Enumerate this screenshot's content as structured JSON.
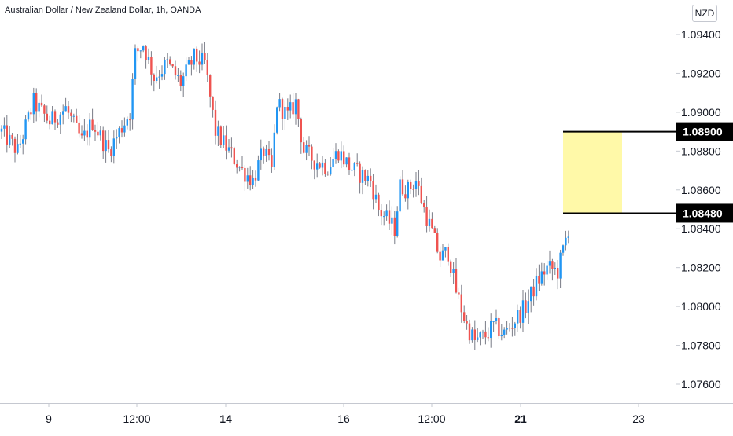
{
  "header": {
    "symbol": "Australian Dollar / New Zealand Dollar",
    "interval": "1h",
    "source": "OANDA",
    "title": "Australian Dollar / New Zealand Dollar, 1h, OANDA",
    "currency": "NZD"
  },
  "colors": {
    "up": "#2196f3",
    "down": "#ef5350",
    "wick": "#787b86",
    "zone_fill": "#fff9a8",
    "level_line": "#000000",
    "label_bg": "#000000",
    "label_text": "#ffffff",
    "axis_text": "#131722",
    "axis_line": "#c5c8d0"
  },
  "chart_data": {
    "type": "candlestick",
    "instrument": "AUD/NZD",
    "ylim": [
      1.075,
      1.0955
    ],
    "y_ticks": [
      "1.09400",
      "1.09200",
      "1.09000",
      "1.08800",
      "1.08600",
      "1.08400",
      "1.08200",
      "1.08000",
      "1.07800",
      "1.07600"
    ],
    "x_ticks": [
      {
        "label": "9",
        "bold": false
      },
      {
        "label": "12:00",
        "bold": false
      },
      {
        "label": "14",
        "bold": true
      },
      {
        "label": "16",
        "bold": false
      },
      {
        "label": "12:00",
        "bold": false
      },
      {
        "label": "21",
        "bold": true
      },
      {
        "label": "23",
        "bold": false
      }
    ],
    "price_path": [
      [
        0,
        1.089
      ],
      [
        6,
        1.088
      ],
      [
        12,
        1.0905
      ],
      [
        18,
        1.0895
      ],
      [
        24,
        1.0902
      ],
      [
        30,
        1.0885
      ],
      [
        34,
        1.0895
      ],
      [
        40,
        1.088
      ],
      [
        44,
        1.089
      ],
      [
        48,
        1.09
      ],
      [
        50,
        1.093
      ],
      [
        53,
        1.0935
      ],
      [
        57,
        1.0918
      ],
      [
        62,
        1.0925
      ],
      [
        67,
        1.0915
      ],
      [
        72,
        1.0928
      ],
      [
        76,
        1.0925
      ],
      [
        80,
        1.089
      ],
      [
        85,
        1.088
      ],
      [
        90,
        1.087
      ],
      [
        94,
        1.0865
      ],
      [
        98,
        1.088
      ],
      [
        101,
        1.087
      ],
      [
        103,
        1.0905
      ],
      [
        107,
        1.0898
      ],
      [
        110,
        1.0905
      ],
      [
        113,
        1.088
      ],
      [
        117,
        1.0875
      ],
      [
        122,
        1.0872
      ],
      [
        126,
        1.088
      ],
      [
        130,
        1.0872
      ],
      [
        134,
        1.0868
      ],
      [
        138,
        1.0865
      ],
      [
        141,
        1.085
      ],
      [
        144,
        1.0845
      ],
      [
        147,
        1.084
      ],
      [
        149,
        1.0862
      ],
      [
        152,
        1.086
      ],
      [
        155,
        1.0865
      ],
      [
        158,
        1.085
      ],
      [
        161,
        1.0838
      ],
      [
        164,
        1.0825
      ],
      [
        167,
        1.0828
      ],
      [
        170,
        1.0808
      ],
      [
        174,
        1.079
      ],
      [
        177,
        1.0782
      ],
      [
        181,
        1.0785
      ],
      [
        184,
        1.079
      ],
      [
        188,
        1.0786
      ],
      [
        192,
        1.0793
      ],
      [
        196,
        1.08
      ],
      [
        200,
        1.0812
      ],
      [
        204,
        1.082
      ],
      [
        208,
        1.0818
      ],
      [
        212,
        1.084
      ]
    ],
    "zone": {
      "top": 1.089,
      "bottom": 1.0848,
      "top_label": "1.08900",
      "bottom_label": "1.08480"
    }
  }
}
